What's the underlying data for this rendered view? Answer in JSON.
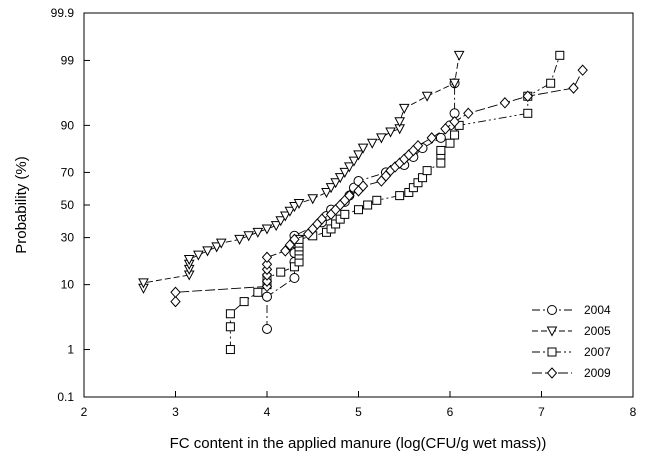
{
  "chart_data": {
    "type": "scatter",
    "title": "",
    "xlabel": "FC content in the applied manure (log(CFU/g wet mass))",
    "ylabel": "Probability (%)",
    "y_scale": "probability",
    "xlim": [
      2,
      8
    ],
    "ylim": [
      0.1,
      99.9
    ],
    "x_ticks": [
      "2",
      "3",
      "4",
      "5",
      "6",
      "7",
      "8"
    ],
    "x_tick_values": [
      2,
      3,
      4,
      5,
      6,
      7,
      8
    ],
    "y_ticks": [
      "0.1",
      "1",
      "10",
      "30",
      "50",
      "70",
      "90",
      "99",
      "99.9"
    ],
    "y_tick_values": [
      0.1,
      1,
      10,
      30,
      50,
      70,
      90,
      99,
      99.9
    ],
    "grid": false,
    "legend_position": "bottom-right",
    "series": [
      {
        "name": "2004",
        "marker": "circle",
        "line": "dash-dot",
        "points": [
          [
            4.0,
            2.3
          ],
          [
            4.0,
            7.0
          ],
          [
            4.3,
            12.0
          ],
          [
            4.3,
            18.0
          ],
          [
            4.3,
            22.0
          ],
          [
            4.3,
            27.0
          ],
          [
            4.3,
            31.0
          ],
          [
            4.6,
            39.0
          ],
          [
            4.65,
            43.0
          ],
          [
            4.7,
            47.0
          ],
          [
            4.85,
            52.0
          ],
          [
            4.9,
            56.0
          ],
          [
            4.95,
            61.0
          ],
          [
            5.0,
            65.0
          ],
          [
            5.3,
            70.0
          ],
          [
            5.5,
            74.0
          ],
          [
            5.6,
            78.0
          ],
          [
            5.7,
            82.0
          ],
          [
            5.9,
            86.0
          ],
          [
            6.0,
            90.0
          ],
          [
            6.05,
            93.0
          ],
          [
            6.05,
            97.5
          ]
        ]
      },
      {
        "name": "2005",
        "marker": "triangle-down",
        "line": "dashed",
        "points": [
          [
            2.65,
            9.0
          ],
          [
            2.65,
            10.5
          ],
          [
            3.15,
            13.0
          ],
          [
            3.15,
            15.0
          ],
          [
            3.15,
            17.0
          ],
          [
            3.15,
            19.0
          ],
          [
            3.25,
            21.0
          ],
          [
            3.35,
            23.0
          ],
          [
            3.45,
            25.0
          ],
          [
            3.5,
            27.0
          ],
          [
            3.7,
            29.0
          ],
          [
            3.8,
            31.0
          ],
          [
            3.9,
            33.0
          ],
          [
            4.0,
            35.0
          ],
          [
            4.1,
            37.0
          ],
          [
            4.15,
            40.0
          ],
          [
            4.2,
            43.0
          ],
          [
            4.25,
            46.0
          ],
          [
            4.3,
            49.0
          ],
          [
            4.35,
            51.0
          ],
          [
            4.5,
            54.0
          ],
          [
            4.65,
            58.0
          ],
          [
            4.7,
            61.0
          ],
          [
            4.75,
            64.0
          ],
          [
            4.8,
            67.0
          ],
          [
            4.85,
            70.0
          ],
          [
            4.9,
            73.0
          ],
          [
            4.95,
            76.0
          ],
          [
            5.0,
            79.0
          ],
          [
            5.05,
            82.0
          ],
          [
            5.15,
            84.0
          ],
          [
            5.25,
            86.0
          ],
          [
            5.35,
            88.0
          ],
          [
            5.45,
            89.0
          ],
          [
            5.45,
            91.0
          ],
          [
            5.5,
            94.0
          ],
          [
            5.75,
            96.0
          ],
          [
            6.05,
            97.5
          ],
          [
            6.1,
            99.2
          ]
        ]
      },
      {
        "name": "2007",
        "marker": "square",
        "line": "dash-dot-dot",
        "points": [
          [
            3.6,
            1.0
          ],
          [
            3.6,
            2.5
          ],
          [
            3.6,
            4.0
          ],
          [
            3.75,
            6.0
          ],
          [
            3.9,
            8.0
          ],
          [
            4.0,
            10.0
          ],
          [
            4.0,
            11.0
          ],
          [
            4.0,
            12.0
          ],
          [
            4.15,
            14.0
          ],
          [
            4.3,
            16.0
          ],
          [
            4.35,
            18.0
          ],
          [
            4.35,
            21.0
          ],
          [
            4.35,
            23.0
          ],
          [
            4.35,
            25.0
          ],
          [
            4.35,
            27.0
          ],
          [
            4.35,
            29.0
          ],
          [
            4.5,
            31.0
          ],
          [
            4.65,
            33.0
          ],
          [
            4.7,
            35.0
          ],
          [
            4.75,
            38.0
          ],
          [
            4.8,
            41.0
          ],
          [
            4.85,
            44.0
          ],
          [
            5.0,
            47.0
          ],
          [
            5.1,
            50.0
          ],
          [
            5.2,
            53.0
          ],
          [
            5.45,
            56.0
          ],
          [
            5.55,
            58.0
          ],
          [
            5.6,
            61.0
          ],
          [
            5.65,
            64.0
          ],
          [
            5.7,
            67.0
          ],
          [
            5.75,
            71.0
          ],
          [
            5.9,
            75.0
          ],
          [
            5.9,
            79.0
          ],
          [
            5.9,
            81.0
          ],
          [
            6.0,
            84.0
          ],
          [
            6.05,
            87.0
          ],
          [
            6.1,
            90.0
          ],
          [
            6.85,
            93.0
          ],
          [
            6.85,
            96.0
          ],
          [
            7.1,
            97.5
          ],
          [
            7.2,
            99.2
          ]
        ]
      },
      {
        "name": "2009",
        "marker": "diamond",
        "line": "long-dash",
        "points": [
          [
            3.0,
            6.0
          ],
          [
            3.0,
            8.0
          ],
          [
            4.0,
            9.5
          ],
          [
            4.0,
            11.0
          ],
          [
            4.0,
            13.0
          ],
          [
            4.0,
            15.0
          ],
          [
            4.0,
            17.0
          ],
          [
            4.0,
            20.0
          ],
          [
            4.2,
            23.0
          ],
          [
            4.25,
            26.0
          ],
          [
            4.3,
            29.0
          ],
          [
            4.45,
            32.0
          ],
          [
            4.5,
            35.0
          ],
          [
            4.55,
            38.0
          ],
          [
            4.6,
            41.0
          ],
          [
            4.7,
            44.0
          ],
          [
            4.75,
            47.0
          ],
          [
            4.8,
            50.0
          ],
          [
            4.85,
            53.0
          ],
          [
            4.9,
            56.0
          ],
          [
            5.0,
            59.0
          ],
          [
            5.05,
            62.0
          ],
          [
            5.25,
            65.0
          ],
          [
            5.3,
            68.0
          ],
          [
            5.35,
            71.0
          ],
          [
            5.4,
            73.0
          ],
          [
            5.45,
            75.0
          ],
          [
            5.5,
            77.0
          ],
          [
            5.55,
            79.0
          ],
          [
            5.6,
            81.0
          ],
          [
            5.65,
            83.0
          ],
          [
            5.8,
            86.0
          ],
          [
            5.95,
            89.0
          ],
          [
            6.05,
            91.0
          ],
          [
            6.2,
            93.0
          ],
          [
            6.6,
            95.0
          ],
          [
            6.85,
            96.0
          ],
          [
            7.35,
            97.0
          ],
          [
            7.45,
            98.5
          ]
        ]
      }
    ]
  }
}
